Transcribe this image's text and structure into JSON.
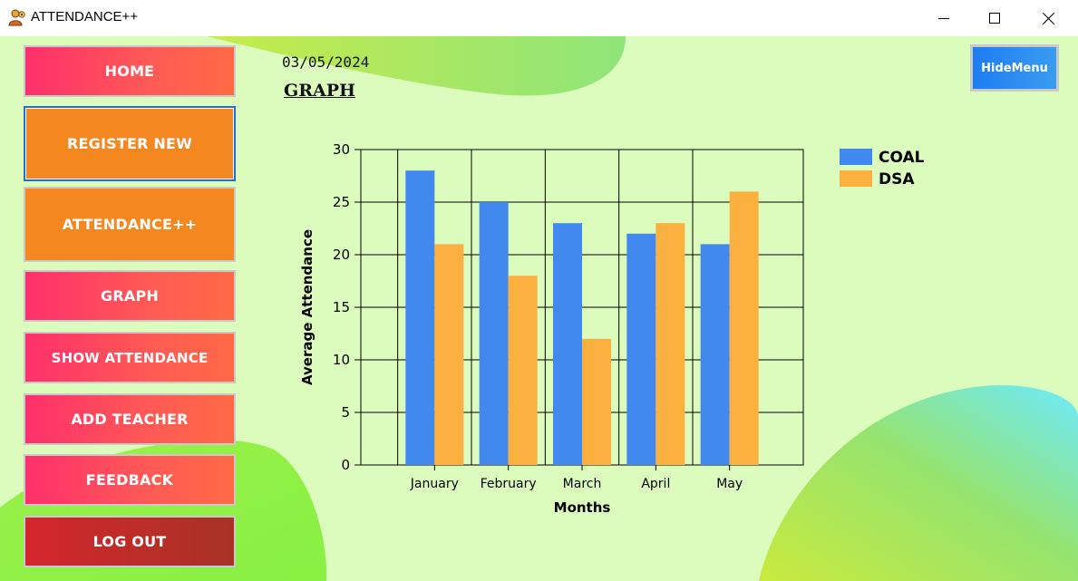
{
  "window": {
    "title": "ATTENDANCE++",
    "controls": {
      "minimize_icon": "minimize-icon",
      "maximize_icon": "maximize-icon",
      "close_icon": "close-icon"
    }
  },
  "sidebar": {
    "items": [
      {
        "label": "HOME",
        "style": "pink"
      },
      {
        "label": "REGISTER NEW",
        "style": "orange",
        "selected": true
      },
      {
        "label": "ATTENDANCE++",
        "style": "orange"
      },
      {
        "label": "GRAPH",
        "style": "pink"
      },
      {
        "label": "SHOW ATTENDANCE",
        "style": "pink"
      },
      {
        "label": "ADD TEACHER",
        "style": "pink"
      },
      {
        "label": "FEEDBACK",
        "style": "pink"
      },
      {
        "label": "LOG OUT",
        "style": "darkred"
      }
    ]
  },
  "header": {
    "date": "03/05/2024",
    "page_title": "GRAPH",
    "hide_menu_label": "HideMenu"
  },
  "chart_data": {
    "type": "bar",
    "categories": [
      "January",
      "February",
      "March",
      "April",
      "May"
    ],
    "series": [
      {
        "name": "COAL",
        "color": "#4189ee",
        "values": [
          28,
          25,
          23,
          22,
          21
        ]
      },
      {
        "name": "DSA",
        "color": "#fbb040",
        "values": [
          21,
          18,
          12,
          23,
          26
        ]
      }
    ],
    "xlabel": "Months",
    "ylabel": "Average Attendance",
    "ylim": [
      0,
      30
    ],
    "yticks": [
      0,
      5,
      10,
      15,
      20,
      25,
      30
    ],
    "grid": true,
    "legend_position": "top-right"
  }
}
